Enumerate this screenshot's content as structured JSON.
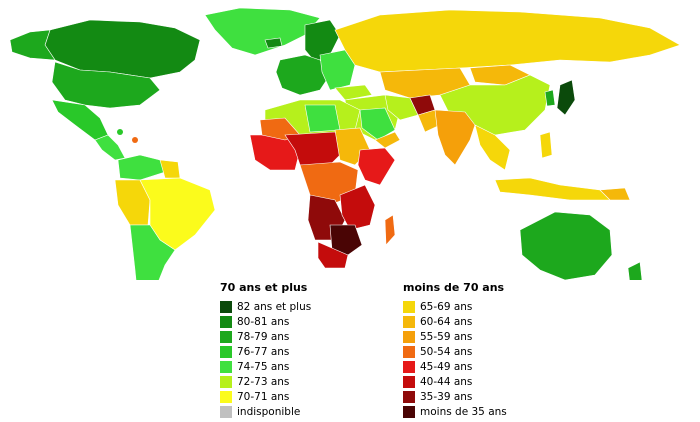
{
  "legend_high": {
    "title": "70 ans et plus",
    "items": [
      {
        "label": "82 ans et plus",
        "color": "#0b4a0b"
      },
      {
        "label": "80-81 ans",
        "color": "#138a13"
      },
      {
        "label": "78-79 ans",
        "color": "#1da81d"
      },
      {
        "label": "76-77 ans",
        "color": "#29c829"
      },
      {
        "label": "74-75 ans",
        "color": "#3fe03f"
      },
      {
        "label": "72-73 ans",
        "color": "#b6f01c"
      },
      {
        "label": "70-71 ans",
        "color": "#fbfb1c"
      },
      {
        "label": "indisponible",
        "color": "#c0c0c0"
      }
    ]
  },
  "legend_low": {
    "title": "moins de 70 ans",
    "items": [
      {
        "label": "65-69 ans",
        "color": "#f5d70a"
      },
      {
        "label": "60-64 ans",
        "color": "#f5b80a"
      },
      {
        "label": "55-59 ans",
        "color": "#f5a00a"
      },
      {
        "label": "50-54 ans",
        "color": "#f06a12"
      },
      {
        "label": "45-49 ans",
        "color": "#e61919"
      },
      {
        "label": "40-44 ans",
        "color": "#c40c0c"
      },
      {
        "label": "35-39 ans",
        "color": "#8f0a0a"
      },
      {
        "label": "moins de 35 ans",
        "color": "#4a0505"
      }
    ]
  }
}
